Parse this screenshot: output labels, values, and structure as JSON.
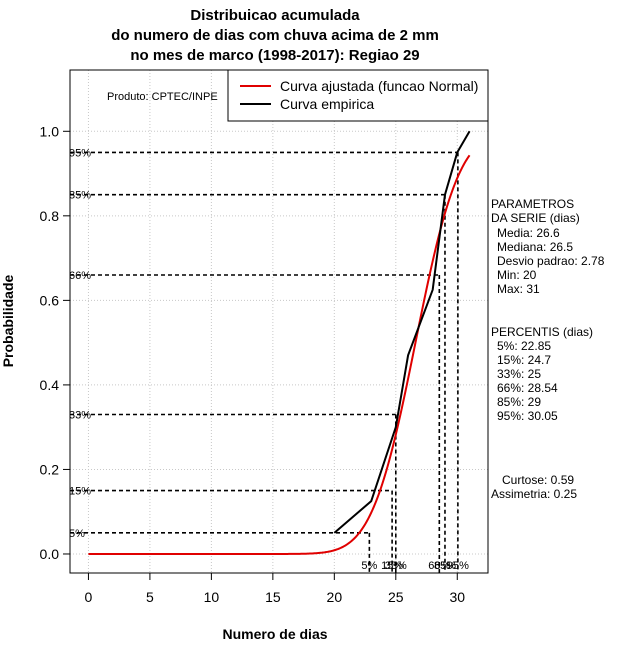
{
  "chart_data": {
    "type": "line",
    "title": [
      "Distribuicao acumulada",
      "do numero de dias com chuva acima de 2 mm",
      "no mes de marco (1998-2017): Regiao 29"
    ],
    "xlabel": "Numero de dias",
    "ylabel": "Probabilidade",
    "xlim": [
      -1.5,
      32.5
    ],
    "ylim": [
      -0.045,
      1.145
    ],
    "xticks": [
      0,
      5,
      10,
      15,
      20,
      25,
      30
    ],
    "yticks": [
      0.0,
      0.2,
      0.4,
      0.6,
      0.8,
      1.0
    ],
    "ytick_labels": [
      "0.0",
      "0.2",
      "0.4",
      "0.6",
      "0.8",
      "1.0"
    ],
    "grid": true,
    "series": [
      {
        "name": "Curva ajustada (funcao Normal)",
        "color": "#e00000",
        "distribution": "normal",
        "mean": 26.6,
        "sd": 2.78,
        "x_range": [
          0,
          31
        ]
      },
      {
        "name": "Curva empirica",
        "color": "#000000",
        "x": [
          20,
          23,
          25,
          26,
          28,
          29,
          30,
          31
        ],
        "y": [
          0.05,
          0.125,
          0.3,
          0.47,
          0.625,
          0.85,
          0.95,
          1.0
        ]
      }
    ],
    "percentile_lines": [
      {
        "label": "5%",
        "p": 0.05,
        "x": 22.85
      },
      {
        "label": "15%",
        "p": 0.15,
        "x": 24.7
      },
      {
        "label": "33%",
        "p": 0.33,
        "x": 25
      },
      {
        "label": "66%",
        "p": 0.66,
        "x": 28.54
      },
      {
        "label": "85%",
        "p": 0.85,
        "x": 29
      },
      {
        "label": "95%",
        "p": 0.95,
        "x": 30.05
      }
    ],
    "product_label": "Produto: CPTEC/INPE",
    "legend_position": "top-right"
  },
  "side_panel": {
    "parametros_title": [
      "PARAMETROS",
      "DA SERIE (dias)"
    ],
    "parametros": [
      "Media: 26.6",
      "Mediana: 26.5",
      "Desvio padrao: 2.78",
      "Min: 20",
      "Max: 31"
    ],
    "percentis_title": "PERCENTIS (dias)",
    "percentis": [
      "5%: 22.85",
      "15%: 24.7",
      "33%: 25",
      "66%: 28.54",
      "85%: 29",
      "95%: 30.05"
    ],
    "curtose": "Curtose: 0.59",
    "assimetria": "Assimetria: 0.25"
  }
}
